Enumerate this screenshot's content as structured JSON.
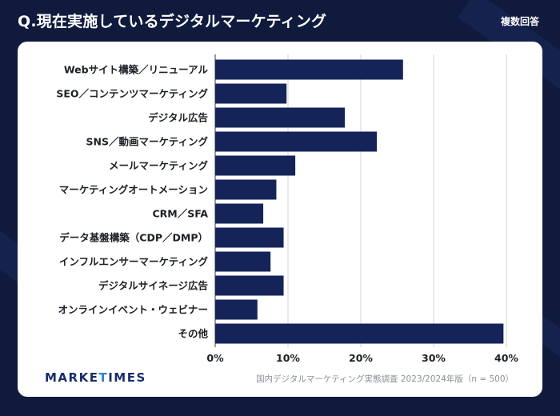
{
  "header": {
    "title": "Q.現在実施しているデジタルマーケティング",
    "badge": "複数回答"
  },
  "footer": {
    "logo_main": "MARKE",
    "logo_accent": "T",
    "logo_rest": "IMES",
    "source": "国内デジタルマーケティング実態調査 2023/2024年版（n = 500）"
  },
  "colors": {
    "bar": "#142459",
    "background": "#0f1a3c",
    "card": "#ffffff",
    "grid": "#cfd3da"
  },
  "chart_data": {
    "type": "bar",
    "orientation": "horizontal",
    "categories": [
      "Webサイト構築／リニューアル",
      "SEO／コンテンツマーケティング",
      "デジタル広告",
      "SNS／動画マーケティング",
      "メールマーケティング",
      "マーケティングオートメーション",
      "CRM／SFA",
      "データ基盤構築（CDP／DMP）",
      "インフルエンサーマーケティング",
      "デジタルサイネージ広告",
      "オンラインイベント・ウェビナー",
      "その他"
    ],
    "values": [
      25.8,
      9.8,
      17.8,
      22.2,
      11.0,
      8.4,
      6.6,
      9.4,
      7.6,
      9.4,
      5.8,
      39.6
    ],
    "xlim": [
      0,
      40
    ],
    "xticks": [
      0,
      10,
      20,
      30,
      40
    ],
    "xtick_labels": [
      "0%",
      "10%",
      "20%",
      "30%",
      "40%"
    ],
    "grid": true
  }
}
